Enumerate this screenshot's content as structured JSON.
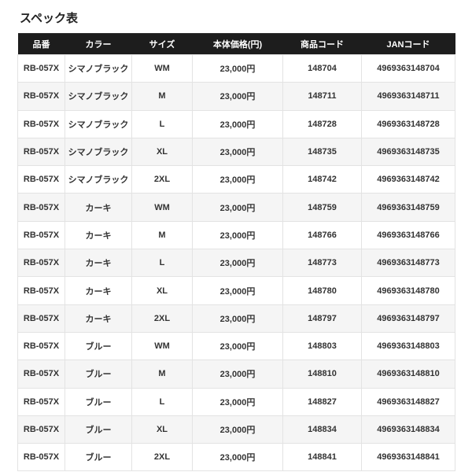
{
  "page": {
    "title": "スペック表"
  },
  "colors": {
    "header_bg": "#1d1d1d",
    "header_text": "#ffffff",
    "row_bg": "#ffffff",
    "row_alt": "#f5f5f5",
    "border": "#e3e3e3",
    "text": "#333333",
    "title": "#222222"
  },
  "table": {
    "columns": [
      "品番",
      "カラー",
      "サイズ",
      "本体価格(円)",
      "商品コード",
      "JANコード"
    ],
    "rows": [
      [
        "RB-057X",
        "シマノブラック",
        "WM",
        "23,000円",
        "148704",
        "4969363148704"
      ],
      [
        "RB-057X",
        "シマノブラック",
        "M",
        "23,000円",
        "148711",
        "4969363148711"
      ],
      [
        "RB-057X",
        "シマノブラック",
        "L",
        "23,000円",
        "148728",
        "4969363148728"
      ],
      [
        "RB-057X",
        "シマノブラック",
        "XL",
        "23,000円",
        "148735",
        "4969363148735"
      ],
      [
        "RB-057X",
        "シマノブラック",
        "2XL",
        "23,000円",
        "148742",
        "4969363148742"
      ],
      [
        "RB-057X",
        "カーキ",
        "WM",
        "23,000円",
        "148759",
        "4969363148759"
      ],
      [
        "RB-057X",
        "カーキ",
        "M",
        "23,000円",
        "148766",
        "4969363148766"
      ],
      [
        "RB-057X",
        "カーキ",
        "L",
        "23,000円",
        "148773",
        "4969363148773"
      ],
      [
        "RB-057X",
        "カーキ",
        "XL",
        "23,000円",
        "148780",
        "4969363148780"
      ],
      [
        "RB-057X",
        "カーキ",
        "2XL",
        "23,000円",
        "148797",
        "4969363148797"
      ],
      [
        "RB-057X",
        "ブルー",
        "WM",
        "23,000円",
        "148803",
        "4969363148803"
      ],
      [
        "RB-057X",
        "ブルー",
        "M",
        "23,000円",
        "148810",
        "4969363148810"
      ],
      [
        "RB-057X",
        "ブルー",
        "L",
        "23,000円",
        "148827",
        "4969363148827"
      ],
      [
        "RB-057X",
        "ブルー",
        "XL",
        "23,000円",
        "148834",
        "4969363148834"
      ],
      [
        "RB-057X",
        "ブルー",
        "2XL",
        "23,000円",
        "148841",
        "4969363148841"
      ]
    ]
  }
}
